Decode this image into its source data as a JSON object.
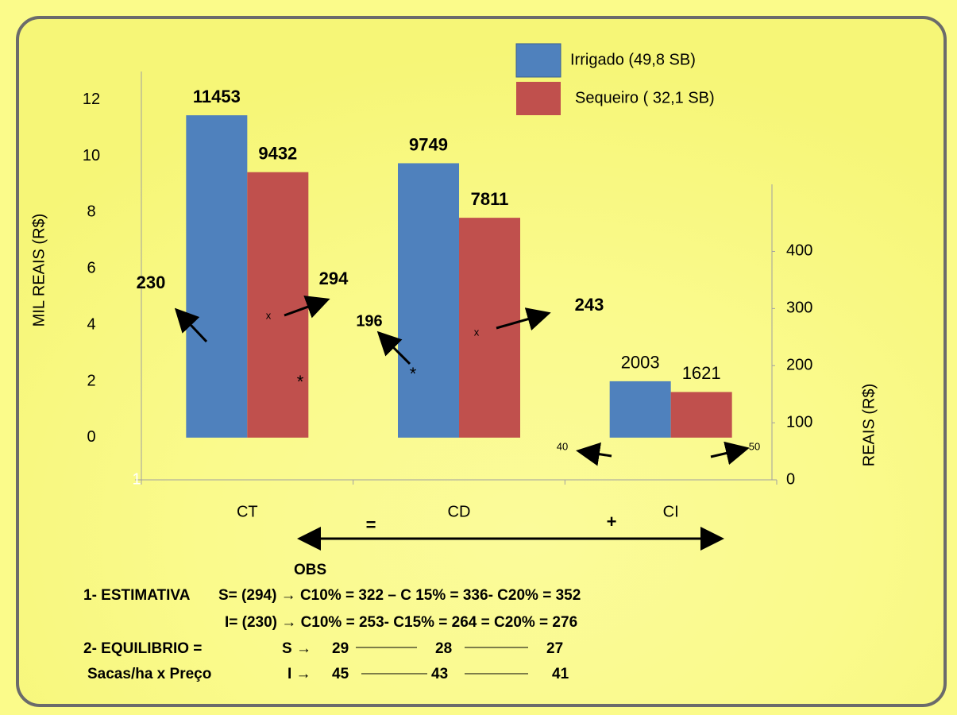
{
  "chart_data": {
    "type": "bar",
    "categories": [
      "CT",
      "CD",
      "CI"
    ],
    "series": [
      {
        "name": "Irrigado  (49,8 SB)",
        "color": "#4f81bd",
        "values": [
          11.453,
          9.749,
          2.003
        ],
        "value_labels": [
          "11453",
          "9749",
          "2003"
        ]
      },
      {
        "name": "Sequeiro ( 32,1 SB)",
        "color": "#c0504d",
        "values": [
          9.432,
          7.811,
          1.621
        ],
        "value_labels": [
          "9432",
          "7811",
          "1621"
        ]
      }
    ],
    "ylabel": "MIL  REAIS (R$)",
    "ylim": [
      -1.5,
      12.5
    ],
    "yticks": [
      0,
      2,
      4,
      6,
      8,
      10,
      12
    ],
    "y2label": "REAIS (R$)",
    "y2lim": [
      0,
      690
    ],
    "y2ticks": [
      0,
      100,
      200,
      300,
      400
    ],
    "legend": "top-right",
    "annotations": [
      "230",
      "294",
      "196",
      "243",
      "40",
      "50",
      "*",
      "*",
      "x",
      "x",
      "=",
      "+",
      "1"
    ]
  },
  "notes": {
    "title": "OBS",
    "rows": [
      [
        "1- ESTIMATIVA",
        "S= (294) → C10% = 322 – C 15% = 336- C20% = 352"
      ],
      [
        "I= (230) → C10% = 253- C15% = 264 = C20% = 276"
      ],
      [
        "2- EQUILIBRIO =",
        "S →",
        "29",
        "28",
        "27"
      ],
      [
        "Sacas/ha x Preço",
        "I →",
        "45",
        "43",
        "41"
      ]
    ]
  }
}
